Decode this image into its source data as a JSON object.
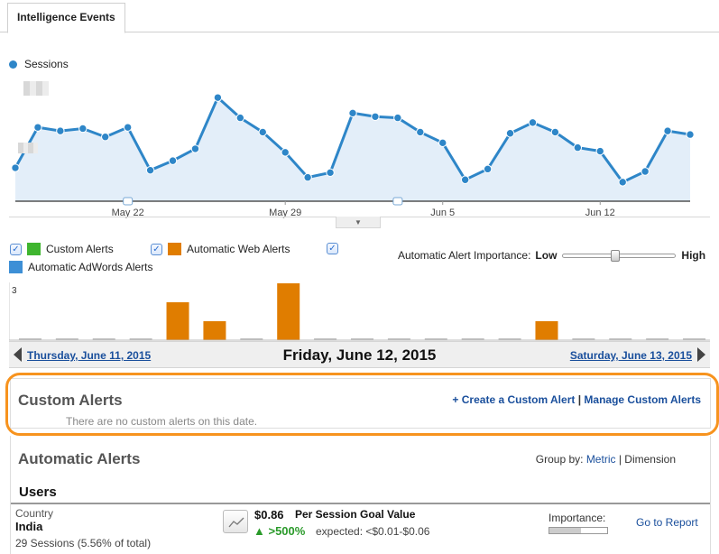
{
  "tab": {
    "label": "Intelligence Events"
  },
  "legend": {
    "label": "Sessions",
    "color": "#2e86c8"
  },
  "chart_data": [
    {
      "type": "area",
      "series": [
        {
          "name": "Sessions",
          "values": [
            28,
            62,
            59,
            61,
            54,
            62,
            26,
            34,
            44,
            87,
            70,
            58,
            41,
            20,
            24,
            74,
            71,
            70,
            58,
            49,
            18,
            27,
            57,
            66,
            58,
            45,
            42,
            16,
            25,
            59,
            56
          ]
        }
      ],
      "x_tick_labels": [
        "May 22",
        "May 29",
        "Jun 5",
        "Jun 12"
      ],
      "ylim": [
        0,
        100
      ],
      "grid": false
    },
    {
      "type": "bar",
      "series": [
        {
          "name": "Automatic Web Alerts",
          "values": [
            0,
            0,
            0,
            0,
            2,
            1,
            0,
            3,
            0,
            0,
            0,
            0,
            0,
            0,
            1,
            0,
            0,
            0,
            0
          ]
        }
      ],
      "y_tick_labels": [
        "3"
      ],
      "ylim": [
        0,
        3
      ],
      "color": "#e07d00"
    }
  ],
  "alert_types": {
    "custom": {
      "label": "Custom Alerts",
      "color": "#3fb52f",
      "checked": true
    },
    "web": {
      "label": "Automatic Web Alerts",
      "color": "#e07d00",
      "checked": true
    },
    "adwords": {
      "label": "Automatic AdWords Alerts",
      "color": "#3d8fd6",
      "checked": true
    }
  },
  "importance_slider": {
    "label": "Automatic Alert Importance:",
    "low": "Low",
    "high": "High",
    "value": 0.45
  },
  "date_nav": {
    "prev": "Thursday, June 11, 2015",
    "current": "Friday, June 12, 2015",
    "next": "Saturday, June 13, 2015"
  },
  "custom_alerts": {
    "title": "Custom Alerts",
    "create_link": "+ Create a Custom Alert",
    "separator": "|",
    "manage_link": "Manage Custom Alerts",
    "empty_text": "There are no custom alerts on this date."
  },
  "automatic_alerts": {
    "title": "Automatic Alerts",
    "group_by_label": "Group by:",
    "group_by_metric": "Metric",
    "group_by_separator": "|",
    "group_by_dimension": "Dimension",
    "section": "Users",
    "row": {
      "dimension": "Country",
      "value": "India",
      "sessions": "29 Sessions (5.56% of total)",
      "metric_value": "$0.86",
      "metric_name": "Per Session Goal Value",
      "change": "▲ >500%",
      "expected": "expected: <$0.01-$0.06",
      "importance_label": "Importance:",
      "importance": 0.55,
      "go_to_report": "Go to Report"
    }
  }
}
